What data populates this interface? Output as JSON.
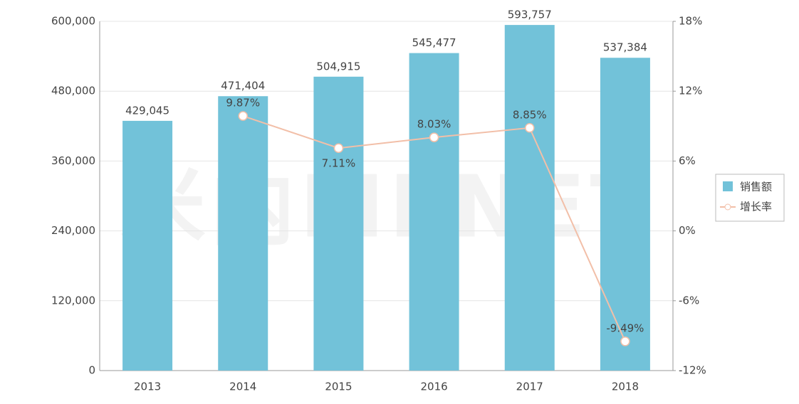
{
  "chart_data": {
    "type": "bar",
    "watermark": "米内MENET",
    "categories": [
      "2013",
      "2014",
      "2015",
      "2016",
      "2017",
      "2018"
    ],
    "series": [
      {
        "name": "销售额",
        "type": "bar",
        "color": "#72c2d9",
        "values": [
          429045,
          471404,
          504915,
          545477,
          593757,
          537384
        ],
        "value_labels": [
          "429,045",
          "471,404",
          "504,915",
          "545,477",
          "593,757",
          "537,384"
        ]
      },
      {
        "name": "增长率",
        "type": "line",
        "axis": "y2",
        "color": "#f2bfa8",
        "values": [
          null,
          9.87,
          7.11,
          8.03,
          8.85,
          -9.49
        ],
        "value_labels": [
          null,
          "9.87%",
          "7.11%",
          "8.03%",
          "8.85%",
          "-9.49%"
        ]
      }
    ],
    "ylim": [
      0,
      600000
    ],
    "yticks": [
      0,
      {
        "value": 120000,
        "label": "120,000"
      },
      {
        "value": 240000,
        "label": "240,000"
      },
      {
        "value": 360000,
        "label": "360,000"
      },
      {
        "value": 480000,
        "label": "480,000"
      },
      {
        "value": 600000,
        "label": "600,000"
      }
    ],
    "y2lim": [
      -12,
      18
    ],
    "y2ticks": [
      {
        "value": -12,
        "label": "-12%"
      },
      {
        "value": -6,
        "label": "-6%"
      },
      {
        "value": 0,
        "label": "0%"
      },
      {
        "value": 6,
        "label": "6%"
      },
      {
        "value": 12,
        "label": "12%"
      },
      {
        "value": 18,
        "label": "18%"
      }
    ],
    "grid": true,
    "legend": "right"
  }
}
